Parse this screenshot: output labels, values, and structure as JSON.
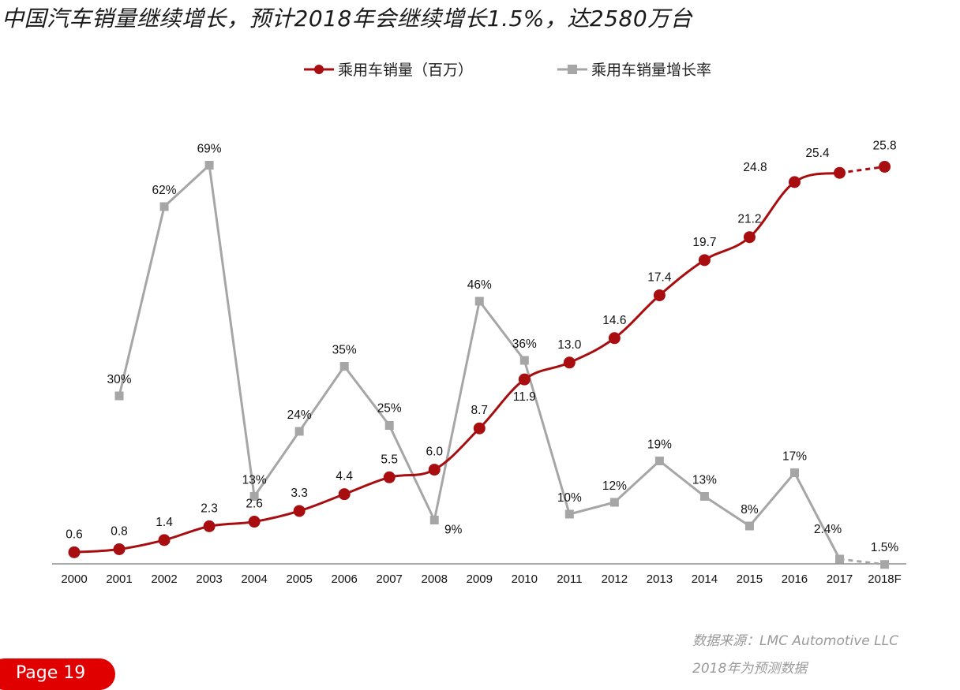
{
  "title": "中国汽车销量继续增长，预计2018年会继续增长1.5%，达2580万台",
  "source_line": "数据来源：LMC Automotive LLC",
  "forecast_note": "2018年为预测数据",
  "page_label": "Page 19",
  "colors": {
    "sales": "#a80d10",
    "growth": "#a6a6a6",
    "badge": "#e00000"
  },
  "chart_data": {
    "type": "line",
    "categories": [
      "2000",
      "2001",
      "2002",
      "2003",
      "2004",
      "2005",
      "2006",
      "2007",
      "2008",
      "2009",
      "2010",
      "2011",
      "2012",
      "2013",
      "2014",
      "2015",
      "2016",
      "2017",
      "2018F"
    ],
    "forecast_categories": [
      "2018F"
    ],
    "legend": {
      "position": "top"
    },
    "grid": false,
    "series": [
      {
        "name": "乘用车销量（百万）",
        "values": [
          0.6,
          0.8,
          1.4,
          2.3,
          2.6,
          3.3,
          4.4,
          5.5,
          6.0,
          8.7,
          11.9,
          13.0,
          14.6,
          17.4,
          19.7,
          21.2,
          24.8,
          25.4,
          25.8
        ],
        "labels": [
          "0.6",
          "0.8",
          "1.4",
          "2.3",
          "2.6",
          "3.3",
          "4.4",
          "5.5",
          "6.0",
          "8.7",
          "11.9",
          "13.0",
          "14.6",
          "17.4",
          "19.7",
          "21.2",
          "24.8",
          "25.4",
          "25.8"
        ]
      },
      {
        "name": "乘用车销量增长率",
        "values": [
          null,
          30,
          62,
          69,
          13,
          24,
          35,
          25,
          9,
          46,
          36,
          10,
          12,
          19,
          13,
          8,
          17,
          2.4,
          1.5
        ],
        "labels": [
          "",
          "30%",
          "62%",
          "69%",
          "13%",
          "24%",
          "35%",
          "25%",
          "9%",
          "46%",
          "36%",
          "10%",
          "12%",
          "19%",
          "13%",
          "8%",
          "17%",
          "2.4%",
          "1.5%"
        ]
      }
    ]
  }
}
